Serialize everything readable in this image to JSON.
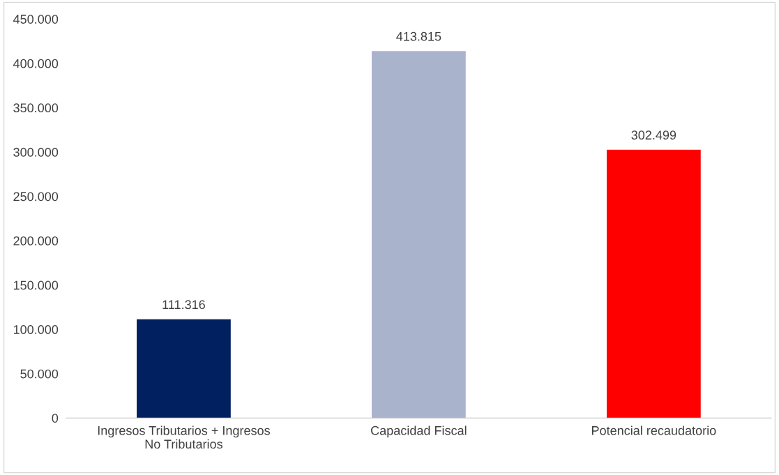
{
  "chart_data": {
    "type": "bar",
    "categories": [
      "Ingresos Tributarios + Ingresos\nNo Tributarios",
      "Capacidad Fiscal",
      "Potencial recaudatorio"
    ],
    "values": [
      111316,
      413815,
      302499
    ],
    "value_labels": [
      "111.316",
      "413.815",
      "302.499"
    ],
    "colors": [
      "#002060",
      "#aab3cc",
      "#ff0000"
    ],
    "ylim": [
      0,
      450000
    ],
    "yticks": [
      {
        "value": 0,
        "label": "0"
      },
      {
        "value": 50000,
        "label": "50.000"
      },
      {
        "value": 100000,
        "label": "100.000"
      },
      {
        "value": 150000,
        "label": "150.000"
      },
      {
        "value": 200000,
        "label": "200.000"
      },
      {
        "value": 250000,
        "label": "250.000"
      },
      {
        "value": 300000,
        "label": "300.000"
      },
      {
        "value": 350000,
        "label": "350.000"
      },
      {
        "value": 400000,
        "label": "400.000"
      },
      {
        "value": 450000,
        "label": "450.000"
      }
    ],
    "grid": false,
    "legend": false
  }
}
